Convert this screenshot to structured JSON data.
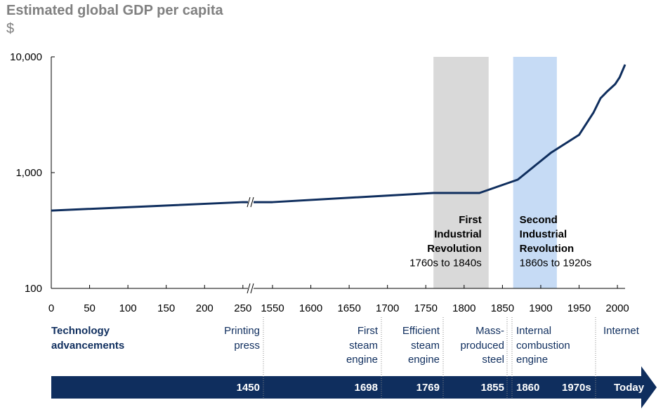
{
  "chart_data": {
    "type": "line",
    "title": "Estimated global GDP per capita",
    "ylabel": "$",
    "y_scale": "log",
    "ylim": [
      100,
      10000
    ],
    "y_ticks": [
      "100",
      "1,000",
      "10,000"
    ],
    "x_axis_break": [
      250,
      1550
    ],
    "xlim_segments": [
      [
        0,
        250
      ],
      [
        1550,
        2010
      ]
    ],
    "x_ticks": [
      "0",
      "50",
      "100",
      "150",
      "200",
      "250",
      "1550",
      "1600",
      "1650",
      "1700",
      "1750",
      "1800",
      "1850",
      "1900",
      "1950",
      "2000"
    ],
    "series": [
      {
        "color": "#0f2e5e",
        "x": [
          0,
          250,
          1550,
          1760,
          1820,
          1870,
          1913,
          1950,
          1969,
          1978,
          1987,
          1997,
          2003,
          2010
        ],
        "y": [
          470,
          556,
          556,
          667,
          667,
          870,
          1480,
          2120,
          3320,
          4390,
          5050,
          5800,
          6670,
          8570
        ]
      }
    ],
    "shaded_periods": [
      {
        "start": 1760,
        "end": 1832,
        "color": "#d9d9d9",
        "label_bold": [
          "First",
          "Industrial",
          "Revolution"
        ],
        "label_sub": "1760s to 1840s"
      },
      {
        "start": 1864,
        "end": 1921,
        "color": "#c6dbf5",
        "label_bold": [
          "Second",
          "Industrial",
          "Revolution"
        ],
        "label_sub": "1860s to 1920s"
      }
    ],
    "grid": false
  },
  "timeline": {
    "heading": [
      "Technology",
      "advancements"
    ],
    "events": [
      {
        "lines": [
          "Printing",
          "press"
        ],
        "year": "1450"
      },
      {
        "lines": [
          "First",
          "steam",
          "engine"
        ],
        "year": "1698"
      },
      {
        "lines": [
          "Efficient",
          "steam",
          "engine"
        ],
        "year": "1769"
      },
      {
        "lines": [
          "Mass-",
          "produced",
          "steel"
        ],
        "year": "1855"
      },
      {
        "lines": [
          "Internal",
          "combustion",
          "engine"
        ],
        "year": "1860"
      },
      {
        "lines": [],
        "year": "1970s"
      },
      {
        "lines": [
          "Internet"
        ],
        "year": "Today"
      }
    ],
    "bar_color": "#0f2e5e"
  }
}
